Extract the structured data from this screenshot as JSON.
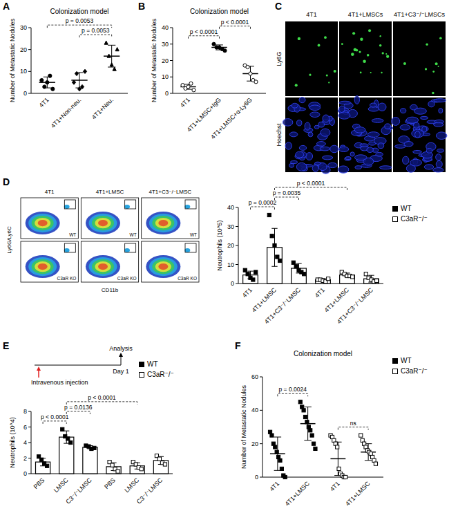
{
  "chart_data": [
    {
      "label": "A",
      "type": "dot",
      "title": "Colonization model",
      "y_label": "Number of Metastatic Nodules",
      "categories": [
        "4T1",
        "4T1+Non-neu.",
        "4T1+Neu."
      ],
      "ylim": [
        0,
        30
      ],
      "yticks": [
        0,
        10,
        20,
        30
      ],
      "series": [
        {
          "color": "#000000",
          "marker": "circle",
          "values": [
            5,
            null,
            null
          ],
          "errors": [
            2.5,
            null,
            null
          ],
          "points": [
            [
              6,
              3,
              5,
              8,
              2
            ],
            null,
            null
          ]
        },
        {
          "color": "#000000",
          "marker": "diamond",
          "values": [
            null,
            6,
            null
          ],
          "errors": [
            null,
            3.5,
            null
          ],
          "points": [
            null,
            [
              5,
              9,
              2,
              3,
              10
            ],
            null
          ]
        },
        {
          "color": "#000000",
          "marker": "triangle",
          "values": [
            null,
            null,
            17
          ],
          "errors": [
            null,
            null,
            5
          ],
          "points": [
            null,
            null,
            [
              23,
              17,
              13,
              11,
              20
            ]
          ]
        }
      ],
      "annotations": [
        {
          "text": "p = 0.0053",
          "between": [
            0,
            2
          ]
        },
        {
          "text": "p = 0.0053",
          "between": [
            1,
            2
          ]
        }
      ]
    },
    {
      "label": "B",
      "type": "dot",
      "title": "Colonization model",
      "y_label": "Number of Metastatic Nodules",
      "categories": [
        "4T1",
        "4T1+LMSC+IgG",
        "4T1+LMSC+α-Ly6G"
      ],
      "ylim": [
        0,
        40
      ],
      "yticks": [
        0,
        10,
        20,
        30,
        40
      ],
      "series": [
        {
          "color": "#000000",
          "marker": "circle-open",
          "values": [
            4,
            null,
            null
          ],
          "errors": [
            1.5,
            null,
            null
          ],
          "points": [
            [
              5,
              3,
              4,
              6,
              2
            ],
            null,
            null
          ]
        },
        {
          "color": "#000000",
          "marker": "circle",
          "values": [
            null,
            28,
            null
          ],
          "errors": [
            null,
            1.5,
            null
          ],
          "points": [
            null,
            [
              30,
              28,
              28,
              27,
              26
            ],
            null
          ]
        },
        {
          "color": "#000000",
          "marker": "circle-open",
          "values": [
            null,
            null,
            12
          ],
          "errors": [
            null,
            null,
            4.5
          ],
          "points": [
            null,
            null,
            [
              17,
              16,
              12,
              8,
              7
            ]
          ]
        }
      ],
      "annotations": [
        {
          "text": "p < 0.0001",
          "between": [
            0,
            1
          ]
        },
        {
          "text": "p < 0.0001",
          "between": [
            1,
            2
          ]
        }
      ]
    },
    {
      "label": "C",
      "type": "image",
      "columns": [
        "4T1",
        "4T1+LMSCs",
        "4T1+C3⁻/⁻LMSCs"
      ],
      "rows": [
        "Ly6G",
        "Hoechst"
      ]
    },
    {
      "label": "D",
      "type": "flow_cytometry",
      "columns": [
        "4T1",
        "4T1+LMSC",
        "4T1+C3⁻/⁻LMSC"
      ],
      "rows": [
        "WT",
        "C3aR KO"
      ],
      "x_label": "CD11b",
      "y_label": "Ly6G/Ly6C"
    },
    {
      "type": "bar",
      "y_label": "Neutrophils (10^5)",
      "categories": [
        "4T1",
        "4T1+LMSC",
        "4T1+C3⁻/⁻LMSC",
        "4T1",
        "4T1+LMSC",
        "4T1+C3⁻/⁻LMSC"
      ],
      "ylim": [
        0,
        40
      ],
      "yticks": [
        0,
        10,
        20,
        30,
        40
      ],
      "legend": "right",
      "series": [
        {
          "name": "WT",
          "color": "#000000",
          "marker": "square",
          "values": [
            4.5,
            19,
            8,
            null,
            null,
            null
          ],
          "errors": [
            2,
            10,
            2.5,
            null,
            null,
            null
          ],
          "points": [
            [
              7,
              5,
              3,
              2,
              6
            ],
            [
              36,
              25,
              20,
              14,
              12
            ],
            [
              11,
              9,
              7,
              6,
              5
            ],
            null,
            null,
            null
          ]
        },
        {
          "name": "C3aR⁻/⁻",
          "color": "#000000",
          "marker": "square-open",
          "values": [
            null,
            null,
            null,
            2,
            4.5,
            2.5
          ],
          "errors": [
            null,
            null,
            null,
            0.6,
            1,
            1.8
          ],
          "points": [
            null,
            null,
            null,
            [
              2,
              2,
              1.5,
              1,
              2.5
            ],
            [
              6,
              5,
              4,
              4,
              3.5
            ],
            [
              5,
              3,
              2,
              1,
              1.5
            ]
          ]
        }
      ],
      "annotations": [
        {
          "text": "p = 0.0002",
          "between": [
            0,
            1
          ]
        },
        {
          "text": "p = 0.0035",
          "between": [
            1,
            2
          ]
        },
        {
          "text": "p < 0.0001",
          "between": [
            1,
            4
          ]
        }
      ]
    },
    {
      "label": "E",
      "type": "bar",
      "y_label": "Neutrophils (10^4)",
      "timeline": {
        "start": "Intravenous injection",
        "tick": "Day 1",
        "end": "Analysis"
      },
      "categories": [
        "PBS",
        "LMSC",
        "C3⁻/⁻LMSC",
        "PBS",
        "LMSC",
        "C3⁻/⁻LMSC"
      ],
      "ylim": [
        0,
        8
      ],
      "yticks": [
        0,
        2,
        4,
        6,
        8
      ],
      "legend": "right",
      "series": [
        {
          "name": "WT",
          "color": "#000000",
          "marker": "square",
          "values": [
            1.5,
            4.7,
            3.4,
            null,
            null,
            null
          ],
          "errors": [
            0.5,
            0.8,
            0.2,
            null,
            null,
            null
          ],
          "points": [
            [
              2.2,
              1.8,
              1.3,
              1.0
            ],
            [
              5.7,
              4.8,
              4.5,
              4.0
            ],
            [
              3.6,
              3.5,
              3.2,
              3.3
            ],
            null,
            null,
            null
          ]
        },
        {
          "name": "C3aR⁻/⁻",
          "color": "#000000",
          "marker": "square-open",
          "values": [
            null,
            null,
            null,
            0.9,
            1.0,
            1.7
          ],
          "errors": [
            null,
            null,
            null,
            0.5,
            0.4,
            0.5
          ],
          "points": [
            null,
            null,
            null,
            [
              1.5,
              1.1,
              0.6,
              0.3
            ],
            [
              1.5,
              1.2,
              0.8,
              0.6
            ],
            [
              2.3,
              1.9,
              1.4,
              1.2
            ]
          ]
        }
      ],
      "annotations": [
        {
          "text": "p < 0.0001",
          "between": [
            0,
            1
          ]
        },
        {
          "text": "p = 0.0136",
          "between": [
            1,
            2
          ]
        },
        {
          "text": "p < 0.0001",
          "between": [
            1,
            4
          ]
        }
      ]
    },
    {
      "label": "F",
      "type": "dot",
      "title": "Colonization model",
      "y_label": "Number of Metastatic Nodules",
      "categories": [
        "4T1",
        "4T1+LMSC",
        "4T1",
        "4T1+LMSC"
      ],
      "ylim": [
        0,
        60
      ],
      "yticks": [
        0,
        20,
        40,
        60
      ],
      "legend": "right",
      "series": [
        {
          "name": "WT",
          "color": "#000000",
          "marker": "square",
          "values": [
            14,
            32,
            null,
            null
          ],
          "errors": [
            10,
            10,
            null,
            null
          ],
          "points": [
            [
              27,
              25,
              20,
              18,
              15,
              12,
              10,
              5,
              1,
              0
            ],
            [
              45,
              42,
              40,
              36,
              33,
              30,
              28,
              25,
              20,
              17
            ],
            null,
            null
          ]
        },
        {
          "name": "C3aR⁻/⁻",
          "color": "#000000",
          "marker": "square-open",
          "values": [
            null,
            null,
            11,
            15
          ],
          "errors": [
            null,
            null,
            10,
            5
          ],
          "points": [
            null,
            null,
            [
              25,
              24,
              22,
              20,
              18,
              5,
              2,
              1,
              0,
              0
            ],
            [
              25,
              22,
              20,
              18,
              16,
              15,
              14,
              12,
              10,
              8
            ]
          ]
        }
      ],
      "annotations": [
        {
          "text": "p = 0.0024",
          "between": [
            0,
            1
          ]
        },
        {
          "text": "ns",
          "between": [
            2,
            3
          ]
        }
      ]
    }
  ]
}
